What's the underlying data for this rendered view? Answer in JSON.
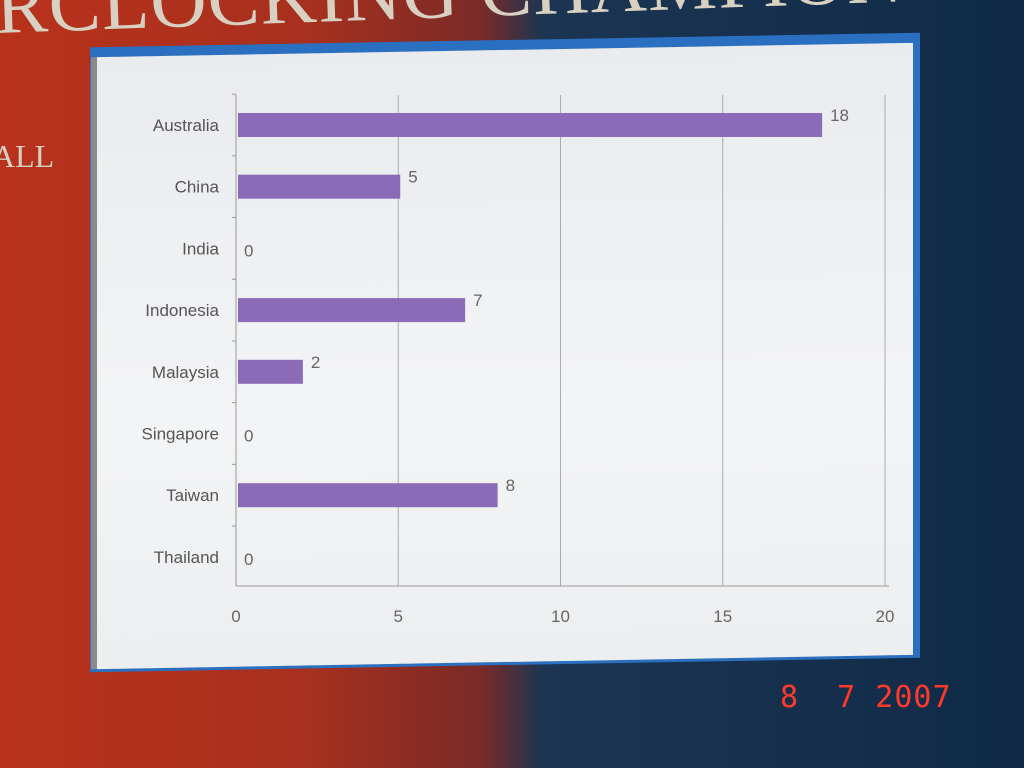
{
  "banner": {
    "title": "RCLOCKING CHAMPION",
    "subtitle": "ALL"
  },
  "date_stamp": "8  7 2007",
  "chart_data": {
    "type": "bar",
    "orientation": "horizontal",
    "categories": [
      "Australia",
      "China",
      "India",
      "Indonesia",
      "Malaysia",
      "Singapore",
      "Taiwan",
      "Thailand"
    ],
    "values": [
      18,
      5,
      0,
      7,
      2,
      0,
      8,
      0
    ],
    "data_labels": [
      "18",
      "5",
      "0",
      "7",
      "2",
      "0",
      "8",
      "0"
    ],
    "xlim": [
      0,
      20
    ],
    "xticks": [
      "0",
      "5",
      "10",
      "15",
      "20"
    ],
    "xtick_values": [
      0,
      5,
      10,
      15,
      20
    ],
    "grid": "vertical",
    "bar_color": "#8b6bb8",
    "title": "",
    "xlabel": "",
    "ylabel": ""
  }
}
